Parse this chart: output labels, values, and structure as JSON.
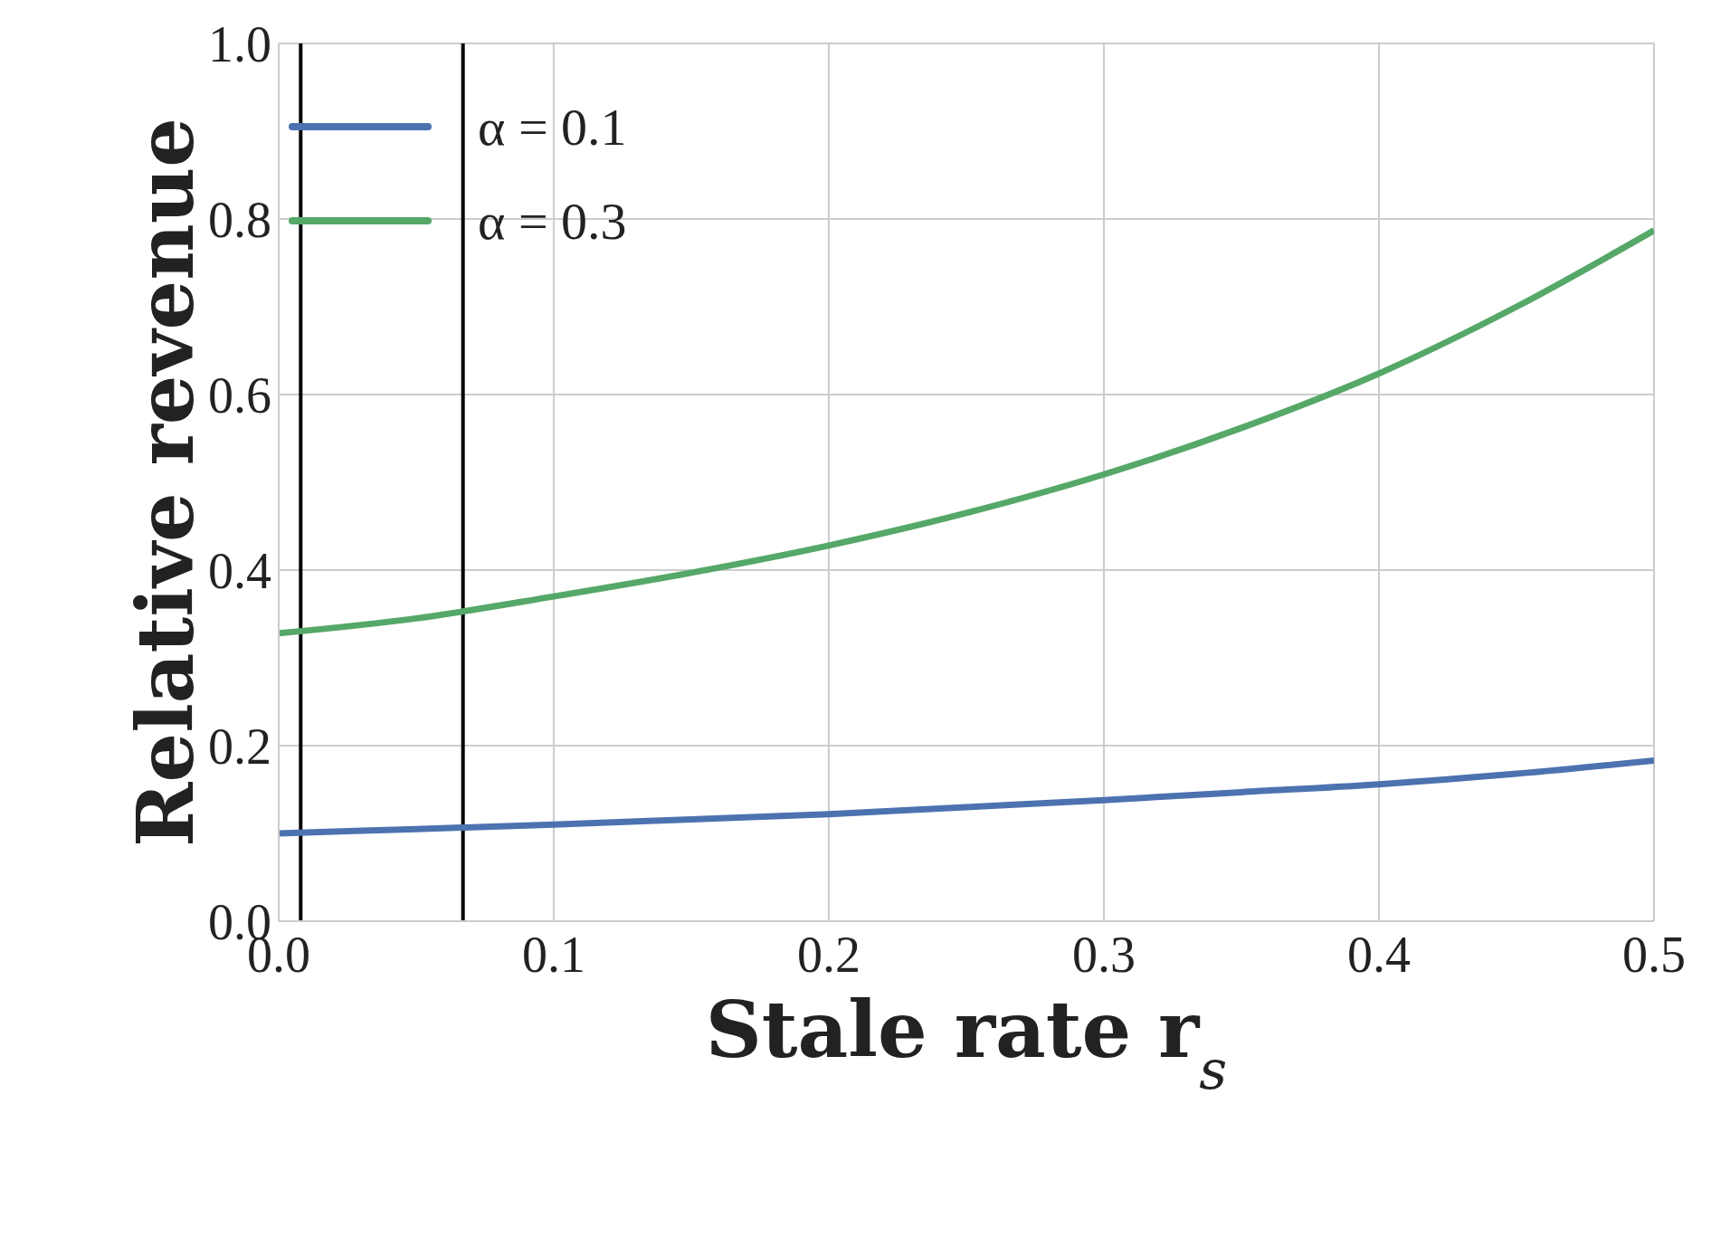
{
  "chart_data": {
    "type": "line",
    "xlabel": "Stale rate r$_{s}$",
    "ylabel": "Relative revenue",
    "x": [
      0,
      0.05,
      0.1,
      0.15,
      0.2,
      0.25,
      0.3,
      0.35,
      0.4,
      0.45,
      0.5
    ],
    "series": [
      {
        "name": "α = 0.1",
        "color": "#4c72b0",
        "values": [
          0.1,
          0.105,
          0.11,
          0.116,
          0.122,
          0.13,
          0.138,
          0.147,
          0.156,
          0.168,
          0.183
        ]
      },
      {
        "name": "α = 0.3",
        "color": "#55a868",
        "values": [
          0.328,
          0.345,
          0.37,
          0.397,
          0.428,
          0.465,
          0.509,
          0.562,
          0.624,
          0.7,
          0.787
        ]
      }
    ],
    "xlim": [
      0,
      0.5
    ],
    "xticks": [
      {
        "value": 0,
        "label": "0.0"
      },
      0.1,
      0.2,
      0.3,
      0.4,
      0.5
    ],
    "ylim": [
      0,
      1
    ],
    "yticks": [
      {
        "value": 0,
        "label": "0.0"
      },
      0.2,
      0.4,
      0.6,
      0.8,
      {
        "value": 1,
        "label": "1.0"
      }
    ],
    "ref_lines": [
      {
        "axis": "x",
        "value": 0.008,
        "color": "#000000"
      },
      {
        "axis": "x",
        "value": 0.067,
        "color": "#000000"
      }
    ],
    "grid": true,
    "legend": "top left",
    "marker": "none",
    "line_style": "solid"
  }
}
